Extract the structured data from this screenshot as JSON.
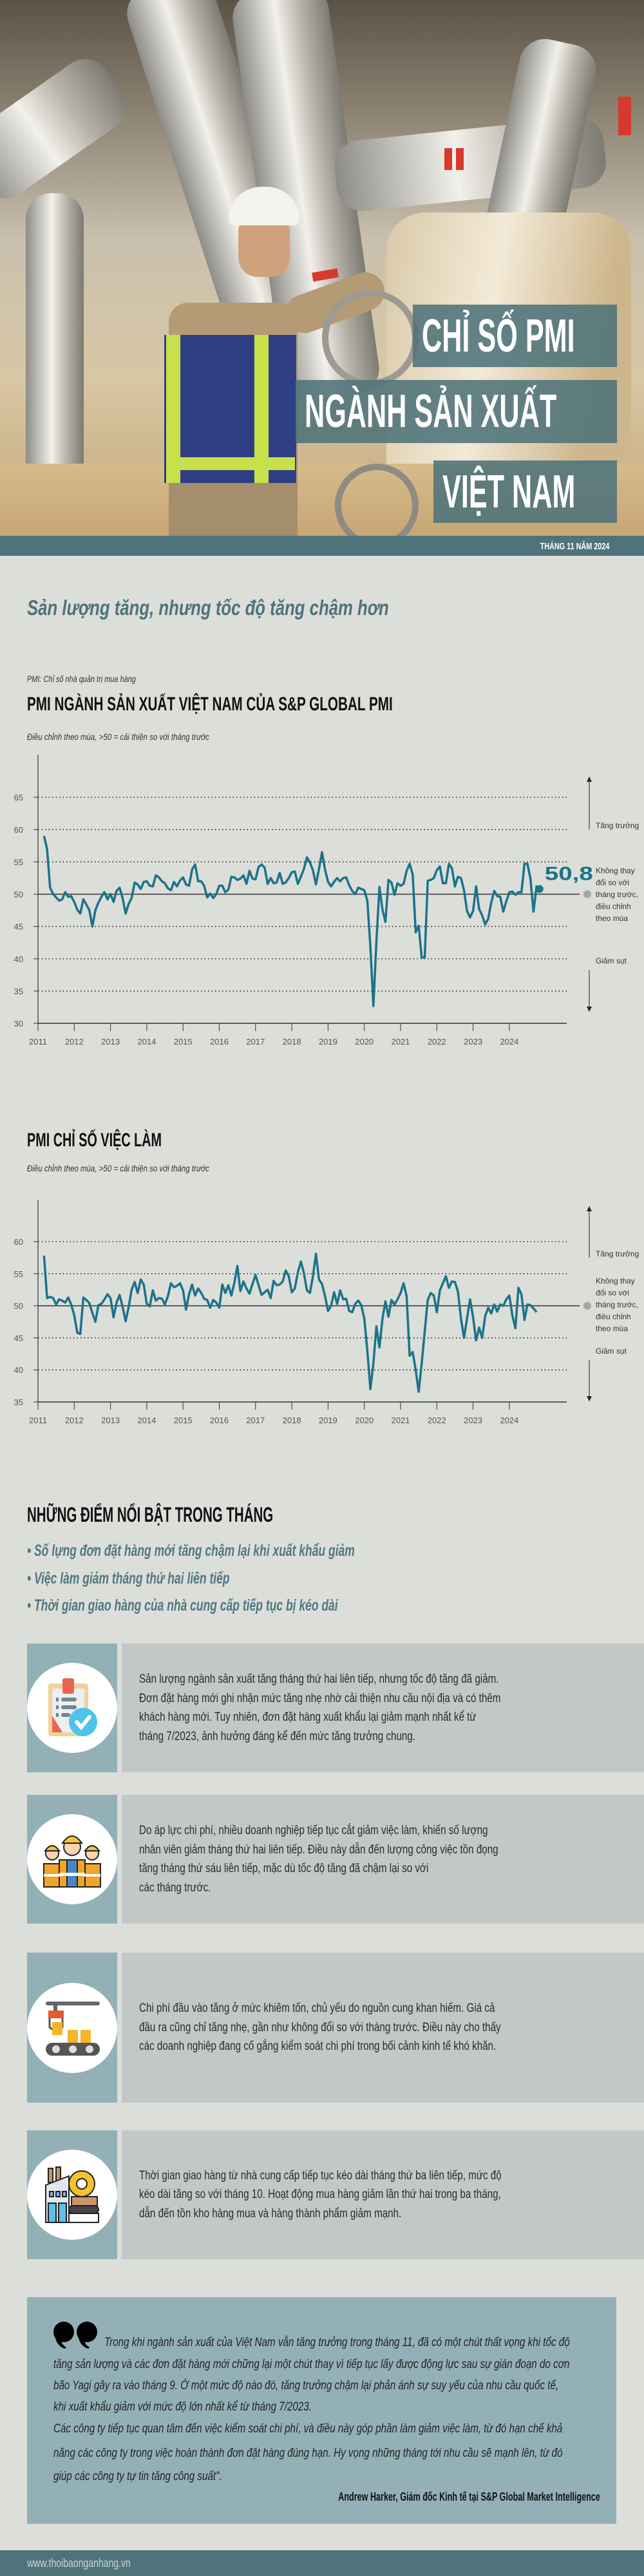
{
  "hero": {
    "title_lines": [
      "CHỈ SỐ PMI",
      "NGÀNH SẢN XUẤT",
      "VIỆT NAM"
    ],
    "date": "THÁNG 11 NĂM 2024"
  },
  "section_heading": "Sản lượng tăng, nhưng tốc độ tăng chậm hơn",
  "chart_note": "PMI: Chỉ số nhà quản trị mua hàng",
  "chart_data": [
    {
      "type": "line",
      "title": "PMI NGÀNH SẢN XUẤT VIỆT NAM CỦA S&P GLOBAL PMI",
      "subtitle": "Điều chỉnh theo mùa, >50 = cải thiện so với tháng trước",
      "xlabel": "",
      "ylabel": "",
      "ylim": [
        30,
        65
      ],
      "yticks": [
        "65",
        "60",
        "55",
        "50",
        "45",
        "40",
        "35",
        "30"
      ],
      "xticks": [
        "2011",
        "2012",
        "2013",
        "2014",
        "2015",
        "2016",
        "2017",
        "2018",
        "2019",
        "2020",
        "2021",
        "2022",
        "2023",
        "2024"
      ],
      "grid": "dotted horizontal, solid line at 50",
      "reference_line": 50,
      "annotations": {
        "up": "Tăng trưởng",
        "middle": [
          "Không thay",
          "đổi so với",
          "tháng trước,",
          "điều chỉnh",
          "theo mùa"
        ],
        "down": "Giảm sụt"
      },
      "last_value_label": "50,8",
      "line_color": "#1c7389",
      "series": [
        {
          "monthly_values_by_year": {
            "2011": [
              null,
              null,
              59.0,
              57.0,
              51.0,
              50.0,
              49.5,
              49.0,
              49.2,
              50.3,
              49.6,
              49.7
            ],
            "2012": [
              48.8,
              47.6,
              47.0,
              49.2,
              48.4,
              47.5,
              45.0,
              47.5,
              48.7,
              49.6,
              50.3,
              49.2
            ],
            "2013": [
              50.0,
              48.8,
              50.5,
              51.0,
              49.4,
              47.0,
              48.5,
              49.4,
              51.8,
              51.5,
              50.8,
              51.9
            ],
            "2014": [
              52.0,
              51.3,
              51.2,
              52.9,
              52.6,
              52.0,
              51.7,
              50.9,
              50.6,
              51.9,
              51.2,
              52.1
            ],
            "2015": [
              52.6,
              51.5,
              51.3,
              53.8,
              54.6,
              52.0,
              52.0,
              51.3,
              49.5,
              50.1,
              49.4,
              50.0
            ],
            "2016": [
              51.3,
              51.3,
              50.3,
              50.7,
              52.7,
              52.6,
              52.2,
              52.4,
              52.9,
              51.6,
              53.6,
              52.4
            ],
            "2017": [
              52.3,
              54.2,
              54.6,
              54.1,
              51.6,
              52.5,
              51.7,
              51.8,
              53.3,
              51.6,
              51.8,
              52.5
            ],
            "2018": [
              53.4,
              53.5,
              51.6,
              52.7,
              53.9,
              55.7,
              54.9,
              53.7,
              51.5,
              53.9,
              56.5,
              53.8
            ],
            "2019": [
              51.9,
              51.2,
              51.9,
              52.5,
              52.0,
              52.5,
              52.6,
              51.4,
              50.5,
              50.0,
              51.0,
              50.8
            ],
            "2020": [
              50.6,
              49.0,
              41.9,
              32.7,
              42.7,
              51.1,
              47.6,
              45.7,
              52.2,
              51.8,
              49.9,
              51.7
            ],
            "2021": [
              51.3,
              51.6,
              53.6,
              54.7,
              53.1,
              44.1,
              45.1,
              40.2,
              40.2,
              52.1,
              52.2,
              52.5
            ],
            "2022": [
              53.7,
              54.3,
              51.7,
              51.7,
              54.7,
              54.0,
              51.2,
              52.7,
              52.5,
              50.6,
              47.4,
              46.4
            ],
            "2023": [
              47.4,
              51.2,
              47.7,
              46.7,
              45.3,
              46.2,
              48.7,
              50.5,
              49.7,
              49.6,
              47.3,
              48.9
            ],
            "2024": [
              50.3,
              50.4,
              49.9,
              50.3,
              50.3,
              54.7,
              54.7,
              52.4,
              47.3,
              51.2,
              50.8,
              null
            ]
          }
        }
      ]
    },
    {
      "type": "line",
      "title": "PMI CHỈ SỐ VIỆC LÀM",
      "subtitle": "Điều chỉnh theo mùa, >50 = cải thiện so với tháng trước",
      "xlabel": "",
      "ylabel": "",
      "ylim": [
        35,
        60
      ],
      "yticks": [
        "60",
        "55",
        "50",
        "45",
        "40",
        "35"
      ],
      "xticks": [
        "2011",
        "2012",
        "2013",
        "2014",
        "2015",
        "2016",
        "2017",
        "2018",
        "2019",
        "2020",
        "2021",
        "2022",
        "2023",
        "2024"
      ],
      "grid": "dotted horizontal, solid line at 50",
      "reference_line": 50,
      "annotations": {
        "up": "Tăng trưởng",
        "middle": [
          "Không thay",
          "đổi so với",
          "tháng trước,",
          "điều chỉnh",
          "theo mùa"
        ],
        "down": "Giảm sụt"
      },
      "line_color": "#1c7389",
      "series": [
        {
          "monthly_values_by_year": {
            "2011": [
              null,
              null,
              57.8,
              51.2,
              51.4,
              51.2,
              50.2,
              51.0,
              50.8,
              50.5,
              51.3,
              50.2
            ],
            "2012": [
              48.5,
              45.8,
              45.6,
              51.3,
              50.9,
              50.4,
              48.9,
              47.5,
              50.1,
              50.3,
              51.0,
              51.8
            ],
            "2013": [
              51.2,
              48.2,
              50.5,
              51.7,
              49.8,
              47.6,
              49.8,
              52.5,
              53.7,
              52.0,
              54.1,
              53.3
            ],
            "2014": [
              50.3,
              49.9,
              52.4,
              50.8,
              51.2,
              51.1,
              50.2,
              51.5,
              53.5,
              52.9,
              53.1,
              53.5
            ],
            "2015": [
              52.4,
              49.4,
              51.8,
              53.3,
              51.6,
              52.7,
              52.0,
              51.1,
              50.9,
              49.7,
              50.9,
              50.5
            ],
            "2016": [
              49.7,
              53.3,
              52.0,
              53.2,
              51.6,
              53.6,
              56.2,
              52.3,
              53.8,
              52.7,
              51.9,
              53.4
            ],
            "2017": [
              54.8,
              53.2,
              51.7,
              52.1,
              52.5,
              51.2,
              53.9,
              53.2,
              53.3,
              53.8,
              55.5,
              54.6
            ],
            "2018": [
              52.1,
              52.7,
              55.2,
              56.9,
              55.1,
              52.4,
              52.0,
              54.6,
              58.1,
              54.1,
              53.4,
              51.5
            ],
            "2019": [
              49.2,
              50.0,
              52.1,
              50.3,
              52.4,
              51.0,
              51.1,
              49.2,
              49.0,
              50.3,
              50.8,
              50.1
            ],
            "2020": [
              48.0,
              43.0,
              37.0,
              41.0,
              46.8,
              43.5,
              48.0,
              50.7,
              48.3,
              50.9,
              50.2,
              51.0
            ],
            "2021": [
              52.0,
              53.5,
              51.5,
              42.2,
              42.8,
              40.0,
              36.6,
              41.0,
              46.0,
              50.9,
              52.0,
              51.6
            ],
            "2022": [
              49.0,
              52.4,
              53.5,
              54.6,
              52.8,
              53.8,
              53.7,
              52.2,
              48.0,
              45.0,
              48.0,
              51.0
            ],
            "2023": [
              48.2,
              44.6,
              46.6,
              45.0,
              48.4,
              49.7,
              48.8,
              50.2,
              49.1,
              50.2,
              50.0,
              51.0
            ],
            "2024": [
              51.6,
              48.5,
              46.5,
              52.8,
              51.8,
              47.8,
              50.2,
              50.1,
              49.6,
              49.0,
              null,
              null
            ]
          }
        }
      ]
    }
  ],
  "highlights": {
    "heading": "NHỮNG ĐIỂM NỔI BẬT TRONG THÁNG",
    "items": [
      "Số lựng đơn đặt hàng mới tăng chậm lại khi xuất khẩu giảm",
      "Việc làm giảm tháng thứ hai liên tiếp",
      "Thời gian giao hàng của nhà cung cấp tiếp tục bị kéo dài"
    ]
  },
  "cards": [
    {
      "icon": "clipboard-check-icon",
      "lines": [
        "Sản lượng ngành sản xuất tăng tháng thứ hai liên tiếp, nhưng tốc độ tăng đã giảm.",
        "Đơn đặt hàng mới ghi nhận mức tăng nhẹ nhờ cải thiện nhu cầu nội địa và có thêm",
        "khách hàng mới. Tuy nhiên, đơn đặt hàng xuất khẩu lại giảm mạnh nhất kể từ",
        "tháng 7/2023, ảnh hưởng đáng kể đến mức tăng trưởng chung."
      ]
    },
    {
      "icon": "workers-icon",
      "lines": [
        "Do áp lực chi phí, nhiều doanh nghiệp tiếp tục cắt giảm việc làm, khiến số lượng",
        "nhân viên giảm tháng thứ hai liên tiếp. Điều này dẫn đến lượng công việc tồn đọng",
        "tăng tháng thứ sáu liên tiếp, mặc dù tốc độ tăng đã chậm lại so với",
        "các tháng trước."
      ]
    },
    {
      "icon": "conveyor-icon",
      "lines": [
        "Chi phí đầu vào tăng ở mức khiêm tốn, chủ yếu do nguồn cung khan hiếm. Giá cả",
        "đầu ra cũng chỉ tăng nhẹ, gần như không đổi so với tháng trước. Điều này cho thấy",
        "các doanh nghiệp đang cố gắng kiểm soát chi phí trong bối cảnh kinh tế khó khăn."
      ]
    },
    {
      "icon": "factory-icon",
      "lines": [
        "Thời gian giao hàng từ nhà cung cấp tiếp tục kéo dài tháng thứ ba liên tiếp, mức độ",
        "kéo dài tăng so với tháng 10. Hoạt động mua hàng giảm lần thứ hai trong ba tháng,",
        "dẫn đến tồn kho hàng mua và hàng thành phẩm giảm mạnh."
      ]
    }
  ],
  "quote": {
    "lines": [
      "Trong khi ngành sản xuất của Việt Nam vẫn tăng trưởng trong tháng 11, đã có một chút thất vọng khi tốc độ",
      "tăng sản lượng và các đơn đặt hàng mới chững lại một chút thay vì tiếp tục lấy được động lực sau sự gián đoạn do cơn",
      "bão Yagi gây ra vào tháng 9. Ở một mức độ nào đó, tăng trưởng chậm lại phản ánh sự suy yếu của nhu cầu quốc tế,",
      "khi xuất khẩu giảm với mức độ lớn nhất kể từ tháng 7/2023.",
      "Các công ty tiếp tục quan tâm đến việc kiểm soát chi phí, và điều này góp phần làm giảm việc làm, từ đó hạn chế khả",
      "năng các công ty trong việc hoàn thành đơn đặt hàng đúng hạn. Hy vọng những tháng tới nhu cầu sẽ mạnh lên, từ đó",
      "giúp các công ty tự tin tăng công suất\"."
    ],
    "author": "Andrew Harker, Giám đốc Kinh tế tại S&P Global Market Intelligence"
  },
  "footer": {
    "website": "www.thoibaonganhang.vn"
  },
  "colors": {
    "teal": "#4e737a",
    "line": "#1c7389",
    "panel": "#93b0b7",
    "card": "#c3c8c7",
    "background": "#dcdeda"
  }
}
